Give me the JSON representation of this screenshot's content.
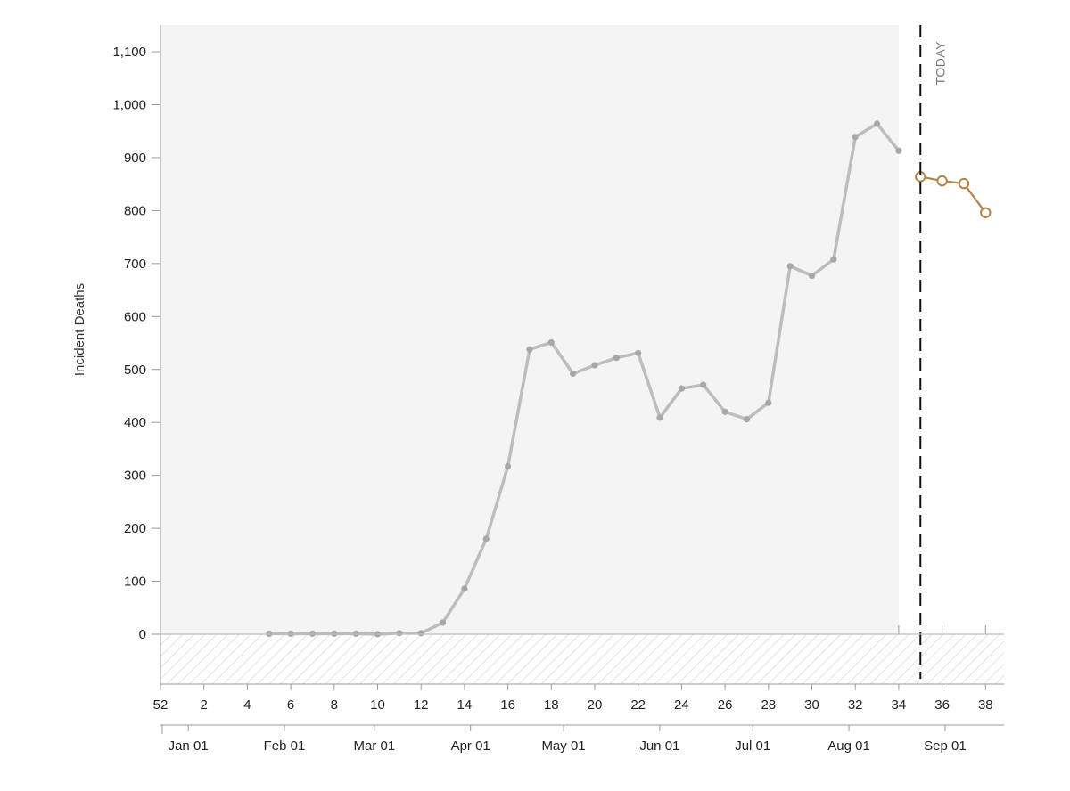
{
  "chart_data": {
    "type": "line",
    "ylabel": "Incident Deaths",
    "ylim": [
      -95,
      1150
    ],
    "yticks": [
      0,
      100,
      200,
      300,
      400,
      500,
      600,
      700,
      800,
      900,
      1000,
      1100
    ],
    "ytick_labels": [
      "0",
      "100",
      "200",
      "300",
      "400",
      "500",
      "600",
      "700",
      "800",
      "900",
      "1,000",
      "1,100"
    ],
    "week_ticks": [
      52,
      2,
      4,
      6,
      8,
      10,
      12,
      14,
      16,
      18,
      20,
      22,
      24,
      26,
      28,
      30,
      32,
      34,
      36,
      38
    ],
    "week_tick_labels": [
      "52",
      "2",
      "4",
      "6",
      "8",
      "10",
      "12",
      "14",
      "16",
      "18",
      "20",
      "22",
      "24",
      "26",
      "28",
      "30",
      "32",
      "34",
      "36",
      "38"
    ],
    "month_ticks": [
      {
        "date": "2020-01-01",
        "label": "Jan 01"
      },
      {
        "date": "2020-02-01",
        "label": "Feb 01"
      },
      {
        "date": "2020-03-01",
        "label": "Mar 01"
      },
      {
        "date": "2020-04-01",
        "label": "Apr 01"
      },
      {
        "date": "2020-05-01",
        "label": "May 01"
      },
      {
        "date": "2020-06-01",
        "label": "Jun 01"
      },
      {
        "date": "2020-07-01",
        "label": "Jul 01"
      },
      {
        "date": "2020-08-01",
        "label": "Aug 01"
      },
      {
        "date": "2020-09-01",
        "label": "Sep 01"
      }
    ],
    "today_label": "TODAY",
    "today_week": 35,
    "observed_end_week": 34,
    "colors": {
      "observed": "#bdbdbd",
      "observed_point": "#a8a8a8",
      "forecast": "#b5834a",
      "shade": "#f4f4f4",
      "hatch": "#d0d0d0"
    },
    "series": [
      {
        "kind": "observed",
        "weeks": [
          5,
          6,
          7,
          8,
          9,
          10,
          11,
          12,
          13,
          14,
          15,
          16,
          17,
          18,
          19,
          20,
          21,
          22,
          23,
          24,
          25,
          26,
          27,
          28,
          29,
          30,
          31,
          32,
          33,
          34
        ],
        "values": [
          1,
          1,
          1,
          1,
          1,
          0,
          2,
          2,
          22,
          86,
          180,
          317,
          538,
          551,
          492,
          508,
          522,
          531,
          409,
          464,
          471,
          420,
          406,
          437,
          695,
          677,
          708,
          939,
          964,
          913
        ]
      },
      {
        "kind": "forecast",
        "weeks": [
          35,
          36,
          37,
          38
        ],
        "values": [
          864,
          856,
          851,
          796
        ]
      }
    ]
  }
}
